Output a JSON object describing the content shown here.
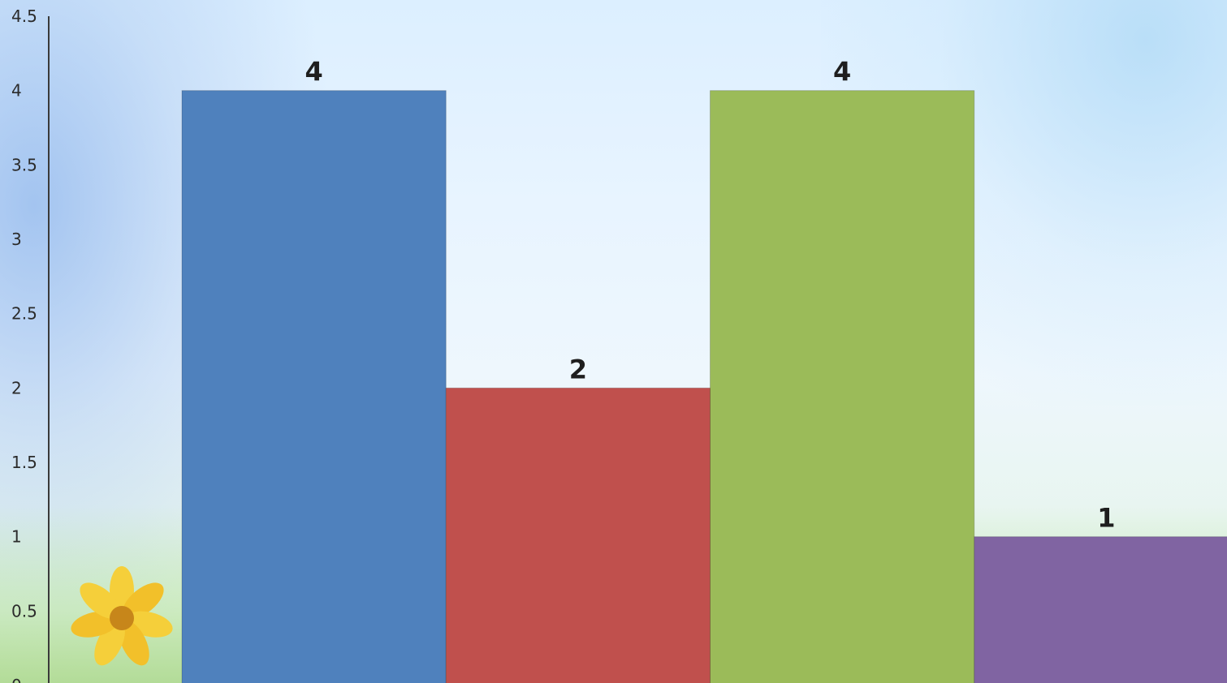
{
  "chart_data": {
    "type": "bar",
    "categories": [
      "",
      "",
      "",
      ""
    ],
    "values": [
      4,
      2,
      4,
      1
    ],
    "data_labels": [
      "4",
      "2",
      "4",
      "1"
    ],
    "colors": [
      "#4f81bd",
      "#c0504d",
      "#9bbb59",
      "#8064a2"
    ],
    "ylim": [
      0,
      4.5
    ],
    "y_ticks": [
      "0",
      "0.5",
      "1",
      "1.5",
      "2",
      "2.5",
      "3",
      "3.5",
      "4",
      "4.5"
    ],
    "grid": false,
    "legend": "none"
  }
}
